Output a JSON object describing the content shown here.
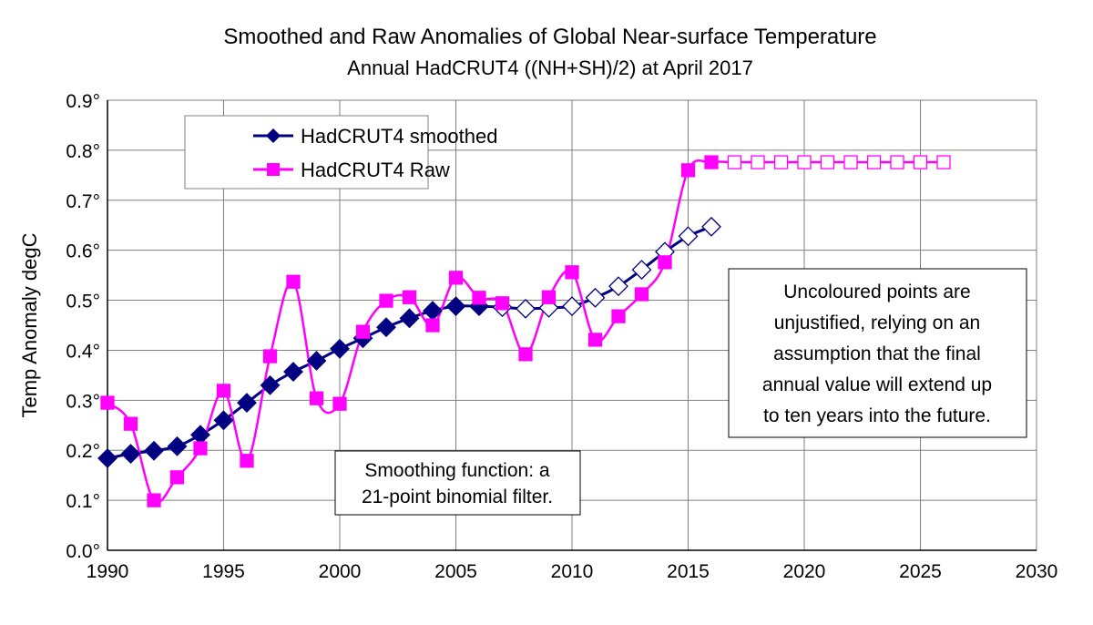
{
  "chart_data": {
    "type": "line",
    "title": "Smoothed and Raw Anomalies of Global Near-surface Temperature",
    "subtitle": "Annual HadCRUT4 ((NH+SH)/2) at April 2017",
    "xlabel": "",
    "ylabel": "Temp Anomaly degC",
    "xlim": [
      1990,
      2030
    ],
    "ylim": [
      0.0,
      0.9
    ],
    "x_ticks": [
      "1990",
      "1995",
      "2000",
      "2005",
      "2010",
      "2015",
      "2020",
      "2025",
      "2030"
    ],
    "y_ticks": [
      "0.0°",
      "0.1°",
      "0.2°",
      "0.3°",
      "0.4°",
      "0.5°",
      "0.6°",
      "0.7°",
      "0.8°",
      "0.9°"
    ],
    "grid": true,
    "legend_placement": "top-left",
    "series": [
      {
        "name": "HadCRUT4 smoothed",
        "color": "#000080",
        "marker": "diamond",
        "hollow_from": 2007,
        "x": [
          1990,
          1991,
          1992,
          1993,
          1994,
          1995,
          1996,
          1997,
          1998,
          1999,
          2000,
          2001,
          2002,
          2003,
          2004,
          2005,
          2006,
          2007,
          2008,
          2009,
          2010,
          2011,
          2012,
          2013,
          2014,
          2015,
          2016
        ],
        "values": [
          0.184,
          0.193,
          0.199,
          0.208,
          0.231,
          0.26,
          0.295,
          0.33,
          0.357,
          0.379,
          0.403,
          0.424,
          0.446,
          0.464,
          0.479,
          0.488,
          0.488,
          0.486,
          0.483,
          0.485,
          0.488,
          0.505,
          0.528,
          0.561,
          0.597,
          0.628,
          0.647
        ]
      },
      {
        "name": "HadCRUT4 Raw",
        "color": "#FF00FF",
        "marker": "square",
        "hollow_from": 2017,
        "x": [
          1990,
          1991,
          1992,
          1993,
          1994,
          1995,
          1996,
          1997,
          1998,
          1999,
          2000,
          2001,
          2002,
          2003,
          2004,
          2005,
          2006,
          2007,
          2008,
          2009,
          2010,
          2011,
          2012,
          2013,
          2014,
          2015,
          2016,
          2017,
          2018,
          2019,
          2020,
          2021,
          2022,
          2023,
          2024,
          2025,
          2026
        ],
        "values": [
          0.295,
          0.253,
          0.1,
          0.146,
          0.204,
          0.319,
          0.179,
          0.388,
          0.537,
          0.304,
          0.293,
          0.437,
          0.499,
          0.506,
          0.45,
          0.545,
          0.505,
          0.494,
          0.392,
          0.506,
          0.556,
          0.421,
          0.468,
          0.512,
          0.576,
          0.76,
          0.776,
          0.776,
          0.776,
          0.776,
          0.776,
          0.776,
          0.776,
          0.776,
          0.776,
          0.776,
          0.776
        ]
      }
    ],
    "annotations": {
      "smoothing": [
        "Smoothing function: a",
        "21-point binomial filter."
      ],
      "uncoloured": [
        "Uncoloured points are",
        "unjustified, relying on an",
        "assumption that the final",
        "annual value will extend up",
        "to ten years into the future."
      ]
    }
  }
}
